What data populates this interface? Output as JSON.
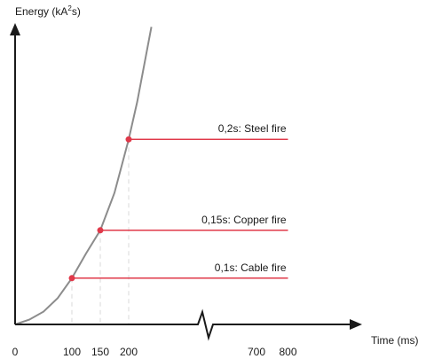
{
  "chart_data": {
    "type": "line",
    "ylabel_parts": [
      "Energy (kA",
      "2",
      "s)"
    ],
    "xlabel": "Time (ms)",
    "x_ticks": [
      "0",
      "100",
      "150",
      "200",
      "700",
      "800"
    ],
    "axis_break": true,
    "series": [
      {
        "x": [
          0,
          25,
          50,
          75,
          100,
          125,
          150,
          175,
          200,
          215,
          240
        ],
        "y": [
          0,
          6,
          16,
          33,
          58,
          89,
          118,
          165,
          232,
          279,
          373
        ]
      }
    ],
    "thresholds": [
      {
        "label": "0,1s: Cable fire",
        "time": 100,
        "energy": 58,
        "end_time": 800
      },
      {
        "label": "0,15s: Copper fire",
        "time": 150,
        "energy": 118,
        "end_time": 800
      },
      {
        "label": "0,2s: Steel fire",
        "time": 200,
        "energy": 232,
        "end_time": 800
      }
    ],
    "grid": false,
    "colors": {
      "curve": "#8c8c8c",
      "threshold": "#e0394a",
      "axis": "#1a1a1a",
      "guide": "#d9d9d9"
    }
  }
}
